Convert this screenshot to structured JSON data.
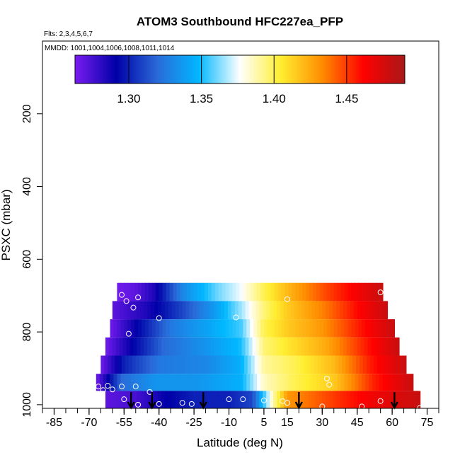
{
  "chart_data": {
    "type": "heatmap",
    "title": "ATOM3 Southbound HFC227ea_PFP",
    "annotations": {
      "flights": "Flts: 2,3,4,5,6,7",
      "dates": "MMDD: 1001,1004,1006,1008,1011,1014"
    },
    "xlabel": "Latitude (deg N)",
    "ylabel": "PSXC (mbar)",
    "xlim": [
      -90,
      80
    ],
    "ylim": [
      1010,
      0
    ],
    "xticks": [
      -85,
      -70,
      -55,
      -40,
      -25,
      -10,
      5,
      15,
      30,
      45,
      60,
      75
    ],
    "yticks": [
      200,
      400,
      600,
      800,
      1000
    ],
    "colorbar": {
      "range": [
        1.263,
        1.49
      ],
      "ticks": [
        1.3,
        1.35,
        1.4,
        1.45
      ],
      "tick_labels": [
        "1.30",
        "1.35",
        "1.40",
        "1.45"
      ],
      "colors": [
        "#7a1cf0",
        "#0000a8",
        "#2a6ad8",
        "#00b8ff",
        "#ffffff",
        "#ffee30",
        "#ff8c00",
        "#ff0000",
        "#a81818"
      ]
    },
    "curtain_rows": [
      {
        "p_top": 665,
        "p_bottom": 715,
        "lat_min": -58,
        "lat_max": 56,
        "stops": [
          [
            -58,
            1.265
          ],
          [
            -50,
            1.27
          ],
          [
            -42,
            1.285
          ],
          [
            -30,
            1.33
          ],
          [
            -15,
            1.36
          ],
          [
            -5,
            1.375
          ],
          [
            5,
            1.4
          ],
          [
            15,
            1.42
          ],
          [
            30,
            1.445
          ],
          [
            45,
            1.465
          ],
          [
            56,
            1.48
          ]
        ]
      },
      {
        "p_top": 715,
        "p_bottom": 765,
        "lat_min": -60,
        "lat_max": 58,
        "stops": [
          [
            -60,
            1.27
          ],
          [
            -45,
            1.285
          ],
          [
            -30,
            1.31
          ],
          [
            -15,
            1.34
          ],
          [
            -5,
            1.365
          ],
          [
            5,
            1.395
          ],
          [
            15,
            1.415
          ],
          [
            30,
            1.435
          ],
          [
            45,
            1.46
          ],
          [
            58,
            1.48
          ]
        ]
      },
      {
        "p_top": 765,
        "p_bottom": 815,
        "lat_min": -61,
        "lat_max": 61,
        "stops": [
          [
            -61,
            1.265
          ],
          [
            -50,
            1.29
          ],
          [
            -35,
            1.325
          ],
          [
            -20,
            1.34
          ],
          [
            -5,
            1.355
          ],
          [
            5,
            1.4
          ],
          [
            15,
            1.415
          ],
          [
            30,
            1.43
          ],
          [
            45,
            1.455
          ],
          [
            61,
            1.48
          ]
        ]
      },
      {
        "p_top": 815,
        "p_bottom": 865,
        "lat_min": -63,
        "lat_max": 63,
        "stops": [
          [
            -63,
            1.265
          ],
          [
            -52,
            1.29
          ],
          [
            -38,
            1.32
          ],
          [
            -20,
            1.335
          ],
          [
            -5,
            1.35
          ],
          [
            5,
            1.395
          ],
          [
            18,
            1.41
          ],
          [
            32,
            1.425
          ],
          [
            48,
            1.455
          ],
          [
            63,
            1.48
          ]
        ]
      },
      {
        "p_top": 865,
        "p_bottom": 915,
        "lat_min": -65,
        "lat_max": 66,
        "stops": [
          [
            -65,
            1.265
          ],
          [
            -55,
            1.3
          ],
          [
            -40,
            1.325
          ],
          [
            -20,
            1.33
          ],
          [
            -5,
            1.345
          ],
          [
            5,
            1.39
          ],
          [
            18,
            1.4
          ],
          [
            35,
            1.42
          ],
          [
            50,
            1.455
          ],
          [
            66,
            1.48
          ]
        ]
      },
      {
        "p_top": 915,
        "p_bottom": 962,
        "lat_min": -67,
        "lat_max": 69,
        "stops": [
          [
            -67,
            1.265
          ],
          [
            -56,
            1.32
          ],
          [
            -42,
            1.335
          ],
          [
            -25,
            1.335
          ],
          [
            -5,
            1.345
          ],
          [
            5,
            1.385
          ],
          [
            18,
            1.4
          ],
          [
            35,
            1.415
          ],
          [
            52,
            1.455
          ],
          [
            69,
            1.48
          ]
        ]
      },
      {
        "p_top": 962,
        "p_bottom": 1010,
        "lat_min": -63,
        "lat_max": 72,
        "stops": [
          [
            -63,
            1.27
          ],
          [
            -50,
            1.275
          ],
          [
            -38,
            1.29
          ],
          [
            -25,
            1.3
          ],
          [
            -10,
            1.3
          ],
          [
            0,
            1.31
          ],
          [
            8,
            1.38
          ],
          [
            15,
            1.43
          ],
          [
            30,
            1.445
          ],
          [
            50,
            1.465
          ],
          [
            72,
            1.48
          ]
        ]
      }
    ],
    "sample_points": [
      [
        -56,
        698
      ],
      [
        -54,
        715
      ],
      [
        -49,
        705
      ],
      [
        -51,
        733
      ],
      [
        -40,
        762
      ],
      [
        -53,
        805
      ],
      [
        -7,
        760
      ],
      [
        15,
        710
      ],
      [
        55,
        691
      ],
      [
        -66,
        950
      ],
      [
        -64,
        960
      ],
      [
        -65,
        970
      ],
      [
        -62,
        948
      ],
      [
        -60,
        958
      ],
      [
        -56,
        950
      ],
      [
        -50,
        950
      ],
      [
        -44,
        965
      ],
      [
        -55,
        985
      ],
      [
        -49,
        1000
      ],
      [
        -40,
        998
      ],
      [
        -30,
        995
      ],
      [
        -26,
        998
      ],
      [
        -10,
        985
      ],
      [
        -4,
        985
      ],
      [
        5,
        988
      ],
      [
        13,
        990
      ],
      [
        15,
        995
      ],
      [
        33,
        945
      ],
      [
        32,
        928
      ],
      [
        30,
        1005
      ],
      [
        47,
        1005
      ],
      [
        55,
        990
      ],
      [
        72,
        1008
      ]
    ],
    "profile_arrows": [
      -52,
      -43,
      -21,
      20,
      61
    ]
  }
}
